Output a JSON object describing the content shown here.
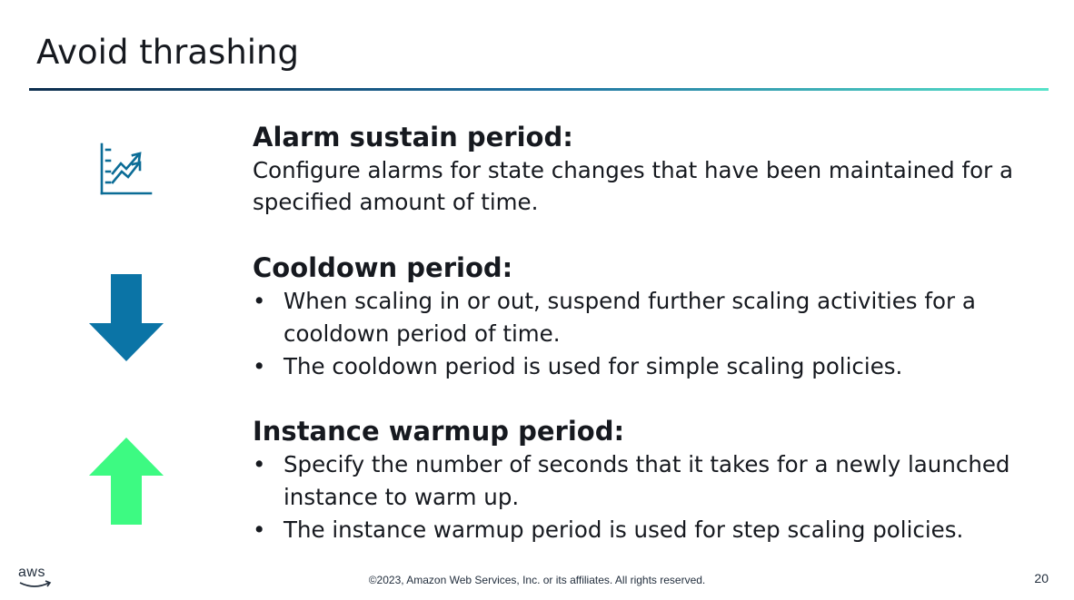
{
  "title": "Avoid thrashing",
  "colors": {
    "rule_start": "#0d2e4e",
    "rule_mid": "#1f6fa0",
    "rule_end": "#57e3c9",
    "chart_icon": "#0b6c96",
    "down_arrow": "#0b74a6",
    "up_arrow": "#3dfa82"
  },
  "sections": [
    {
      "icon": "chart-trend-icon",
      "heading": "Alarm sustain period:",
      "text": "Configure alarms for state changes that have been maintained for a specified amount of time."
    },
    {
      "icon": "arrow-down-icon",
      "heading": "Cooldown period:",
      "bullets": [
        "When scaling in or out, suspend further scaling activities for a cooldown period of time.",
        "The cooldown period is used for simple scaling policies."
      ]
    },
    {
      "icon": "arrow-up-icon",
      "heading": "Instance warmup period:",
      "bullets": [
        "Specify the number of seconds that it takes for a newly launched instance to warm up.",
        "The instance warmup period is used for step scaling policies."
      ]
    }
  ],
  "footer": {
    "logo_text": "aws",
    "copyright": "©2023, Amazon Web Services, Inc. or its affiliates. All rights reserved.",
    "page_number": "20"
  }
}
